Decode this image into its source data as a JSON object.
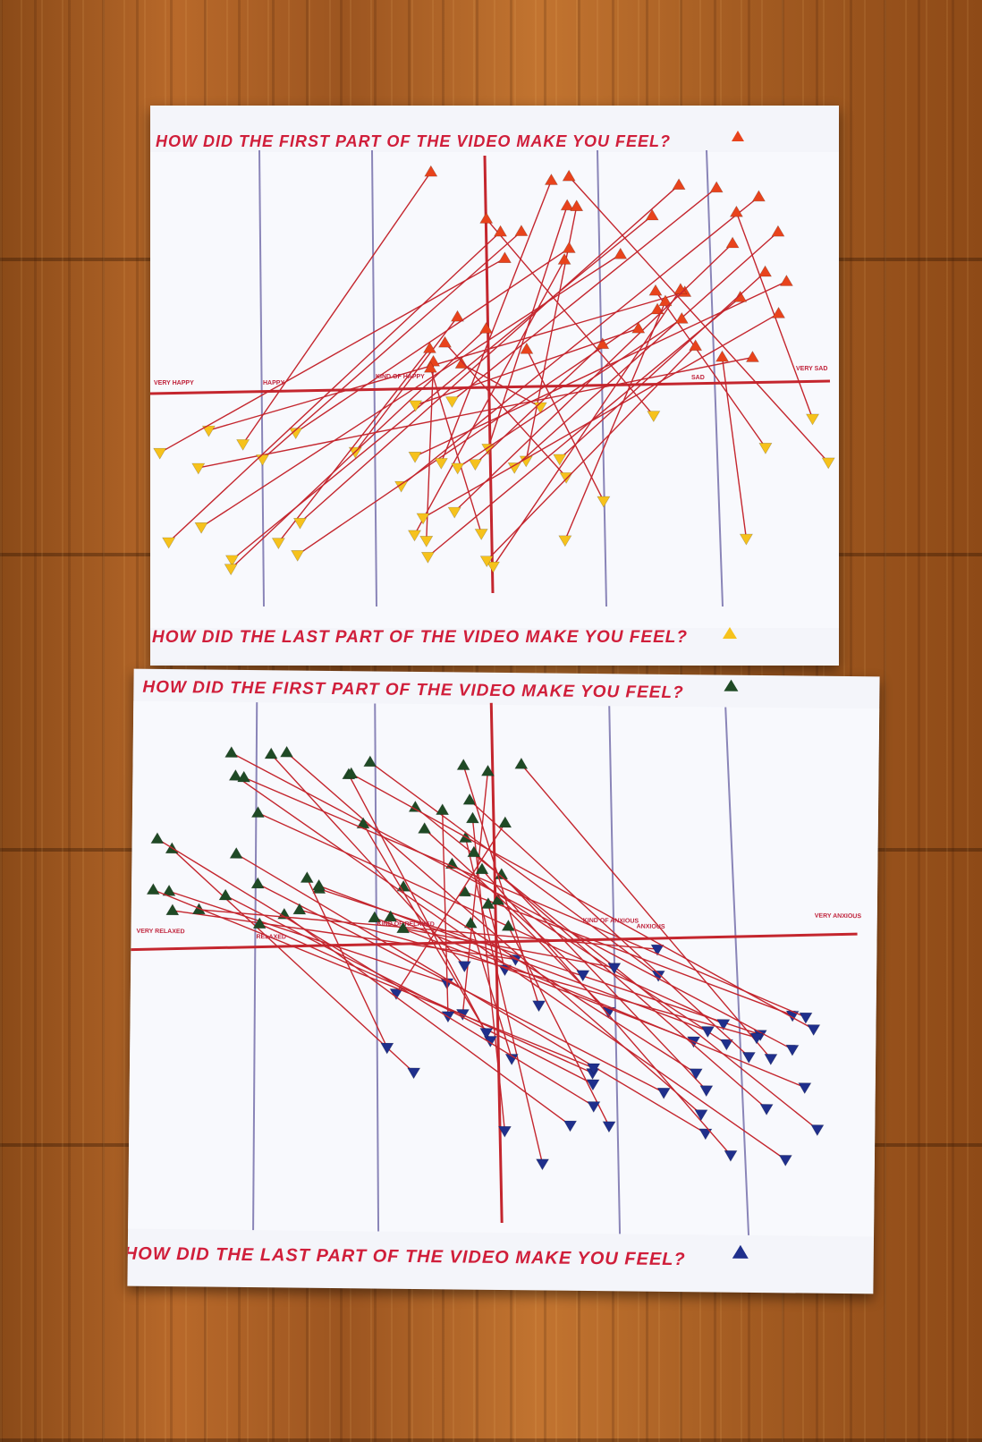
{
  "posters": [
    {
      "title_top": "HOW DID THE FIRST PART OF THE VIDEO MAKE YOU FEEL?",
      "title_bottom": "HOW DID THE LAST PART OF THE VIDEO MAKE YOU FEEL?",
      "axis_labels": [
        "VERY HAPPY",
        "HAPPY",
        "KIND OF HAPPY",
        "SAD",
        "VERY SAD"
      ],
      "start_marker_color": "#e8431c",
      "end_marker_color": "#f6c21c",
      "line_color": "#c4262e"
    },
    {
      "title_top": "HOW DID THE FIRST PART OF THE VIDEO MAKE YOU FEEL?",
      "title_bottom": "HOW DID THE LAST PART OF THE VIDEO MAKE YOU FEEL?",
      "axis_labels": [
        "VERY RELAXED",
        "RELAXED",
        "KIND OF RELAXED",
        "KIND OF ANXIOUS",
        "ANXIOUS",
        "VERY ANXIOUS"
      ],
      "start_marker_color": "#1f4a25",
      "end_marker_color": "#1f2f8c",
      "line_color": "#c4262e"
    }
  ]
}
